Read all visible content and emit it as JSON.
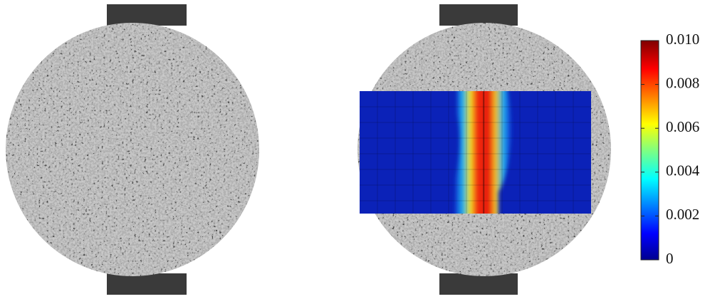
{
  "colorbar": {
    "range": [
      0,
      0.01
    ],
    "ticks": [
      0,
      0.002,
      0.004,
      0.006,
      0.008,
      {
        "value": 0.01,
        "label": "0.010"
      }
    ]
  }
}
